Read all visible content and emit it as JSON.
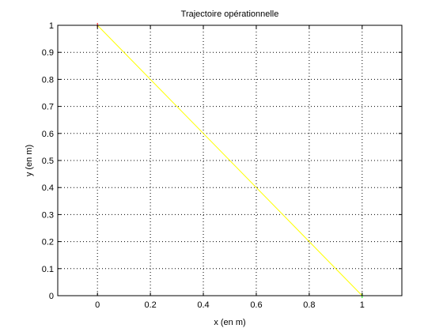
{
  "chart_data": {
    "type": "line",
    "title": "Trajectoire opérationnelle",
    "xlabel": "x (en m)",
    "ylabel": "y (en m)",
    "xlim": [
      -0.15,
      1.15
    ],
    "ylim": [
      0,
      1
    ],
    "xticks": [
      0,
      0.2,
      0.4,
      0.6,
      0.8,
      1
    ],
    "xtick_labels": [
      "0",
      "0.2",
      "0.4",
      "0.6",
      "0.8",
      "1"
    ],
    "yticks": [
      0,
      0.1,
      0.2,
      0.3,
      0.4,
      0.5,
      0.6,
      0.7,
      0.8,
      0.9,
      1
    ],
    "ytick_labels": [
      "0",
      "0.1",
      "0.2",
      "0.3",
      "0.4",
      "0.5",
      "0.6",
      "0.7",
      "0.8",
      "0.9",
      "1"
    ],
    "grid": true,
    "grid_style": "dotted",
    "series": [
      {
        "color": "#ffff00",
        "style": "line",
        "x": [
          0,
          1
        ],
        "y": [
          1,
          0
        ]
      },
      {
        "color": "#ff0000",
        "style": "marker",
        "x": [
          0
        ],
        "y": [
          1
        ]
      },
      {
        "color": "#00ff00",
        "style": "marker",
        "x": [
          1
        ],
        "y": [
          0
        ]
      }
    ]
  }
}
